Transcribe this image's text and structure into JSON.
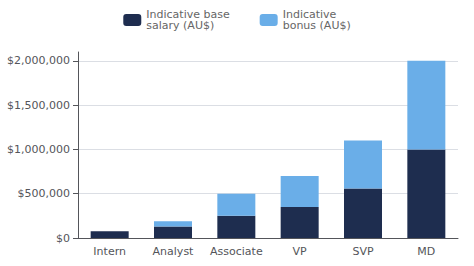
{
  "chart_data": {
    "type": "bar",
    "stacked": true,
    "categories": [
      "Intern",
      "Analyst",
      "Associate",
      "VP",
      "SVP",
      "MD"
    ],
    "series": [
      {
        "name": "Indicative base\nsalary (AU$)",
        "color": "#1e2d4f",
        "values": [
          75000,
          130000,
          250000,
          350000,
          560000,
          1000000
        ]
      },
      {
        "name": "Indicative\nbonus (AU$)",
        "color": "#6aaee8",
        "values": [
          0,
          60000,
          250000,
          350000,
          540000,
          1000000
        ]
      }
    ],
    "ylim": [
      0,
      2100000
    ],
    "yticks": [
      {
        "value": 0,
        "label": "$0"
      },
      {
        "value": 500000,
        "label": "$500,000"
      },
      {
        "value": 1000000,
        "label": "$1,000,000"
      },
      {
        "value": 1500000,
        "label": "$1,500,000"
      },
      {
        "value": 2000000,
        "label": "$2,000,000"
      }
    ],
    "grid": true,
    "legend": "top"
  }
}
